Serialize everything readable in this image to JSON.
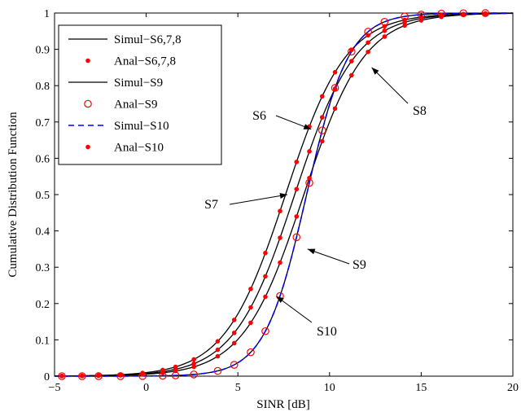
{
  "chart_data": {
    "type": "line",
    "title": "",
    "xlabel": "SINR [dB]",
    "ylabel": "Cumulative Distribution Function",
    "xlim": [
      -5,
      20
    ],
    "ylim": [
      0,
      1
    ],
    "xticks": [
      -5,
      0,
      5,
      10,
      15,
      20
    ],
    "yticks": [
      0,
      0.1,
      0.2,
      0.3,
      0.4,
      0.5,
      0.6,
      0.7,
      0.8,
      0.9,
      1
    ],
    "grid": false,
    "legend_position": "top-left",
    "legend": [
      {
        "label": "Simul−S6,7,8",
        "style": "solid",
        "color": "#000000"
      },
      {
        "label": "Anal−S6,7,8",
        "style": "dot",
        "color": "#ff0000"
      },
      {
        "label": "Simul−S9",
        "style": "solid",
        "color": "#000000"
      },
      {
        "label": "Anal−S9",
        "style": "circle",
        "color": "#ff0000"
      },
      {
        "label": "Simul−S10",
        "style": "dashed",
        "color": "#0000ff"
      },
      {
        "label": "Anal−S10",
        "style": "dot",
        "color": "#ff0000"
      }
    ],
    "series": [
      {
        "name": "S6",
        "mean": 7.6,
        "scale": 1.65
      },
      {
        "name": "S7",
        "mean": 8.1,
        "scale": 1.65
      },
      {
        "name": "S8",
        "mean": 8.6,
        "scale": 1.65
      },
      {
        "name": "S9",
        "mean": 8.75,
        "scale": 1.15
      },
      {
        "name": "S10",
        "mean": 8.75,
        "scale": 1.15
      }
    ],
    "anal_points_x": [
      -4.6,
      -3.5,
      -2.6,
      -1.4,
      -0.2,
      0.9,
      1.6,
      2.6,
      3.9,
      4.8,
      5.7,
      6.5,
      7.3,
      8.2,
      8.9,
      9.6,
      10.3,
      11.2,
      12.1,
      13.0,
      14.1,
      15.0,
      16.1,
      17.3,
      18.5
    ],
    "annotations": [
      {
        "text": "S6",
        "target": [
          9.0,
          0.68
        ]
      },
      {
        "text": "S7",
        "target": [
          7.7,
          0.5
        ]
      },
      {
        "text": "S8",
        "target": [
          12.3,
          0.85
        ]
      },
      {
        "text": "S9",
        "target": [
          8.8,
          0.35
        ]
      },
      {
        "text": "S10",
        "target": [
          7.1,
          0.22
        ]
      }
    ]
  }
}
